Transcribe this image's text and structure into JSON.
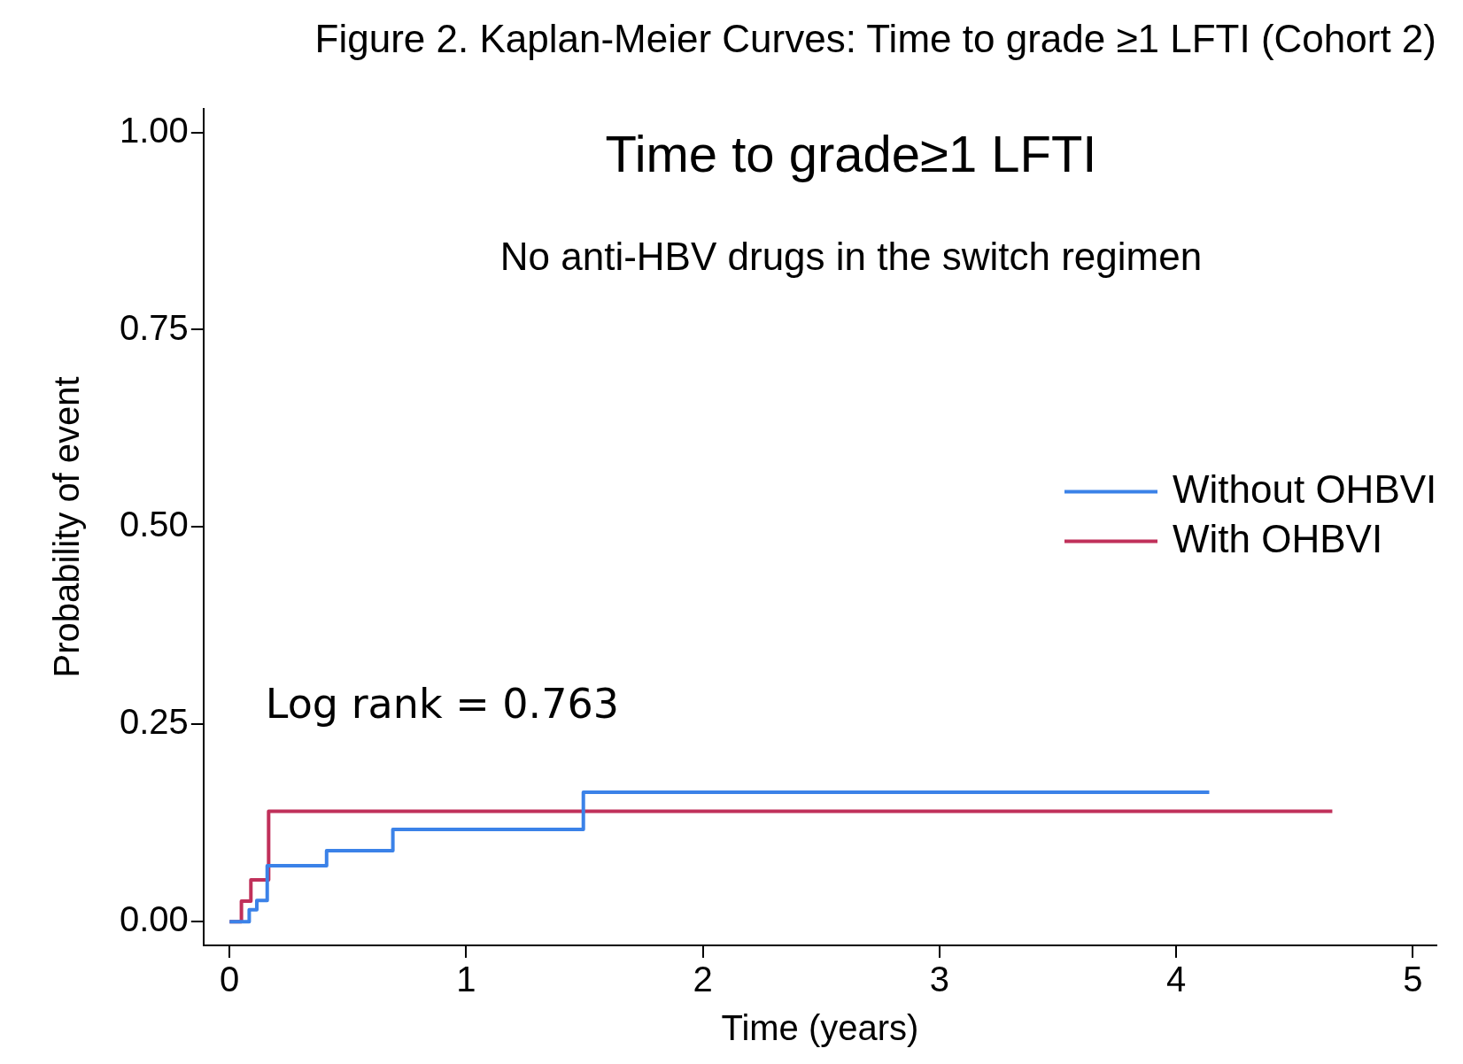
{
  "chart_data": {
    "type": "step",
    "title": "Figure 2. Kaplan-Meier Curves: Time to grade ≥1 LFTI (Cohort 2)",
    "subtitle": "Time to grade≥1 LFTI",
    "annotations": [
      "No anti-HBV drugs in the switch regimen",
      "Log rank = 0.763"
    ],
    "xlabel": "Time (years)",
    "ylabel": "Probability of event",
    "series": [
      {
        "name": "Without OHBVI",
        "color": "#3b82e8",
        "x": [
          0,
          0.083,
          0.115,
          0.159,
          0.41,
          0.69,
          1.495,
          4.14
        ],
        "values": [
          0,
          0.015,
          0.027,
          0.071,
          0.09,
          0.117,
          0.164,
          0.164
        ]
      },
      {
        "name": "With OHBVI",
        "color": "#c0305a",
        "x": [
          0,
          0.05,
          0.09,
          0.165,
          4.66
        ],
        "values": [
          0,
          0.026,
          0.053,
          0.14,
          0.14
        ]
      }
    ],
    "xlim": [
      -0.11,
      5.1
    ],
    "xticks": [
      0,
      1,
      2,
      3,
      4,
      5
    ],
    "ylim": [
      -0.03,
      1.03
    ],
    "yticks": [
      {
        "value": 0,
        "label": "0.00"
      },
      {
        "value": 0.25,
        "label": "0.25"
      },
      {
        "value": 0.5,
        "label": "0.50"
      },
      {
        "value": 0.75,
        "label": "0.75"
      },
      {
        "value": 1,
        "label": "1.00"
      }
    ],
    "grid": false,
    "legend": "right",
    "marker": "none",
    "line_style": "solid"
  }
}
